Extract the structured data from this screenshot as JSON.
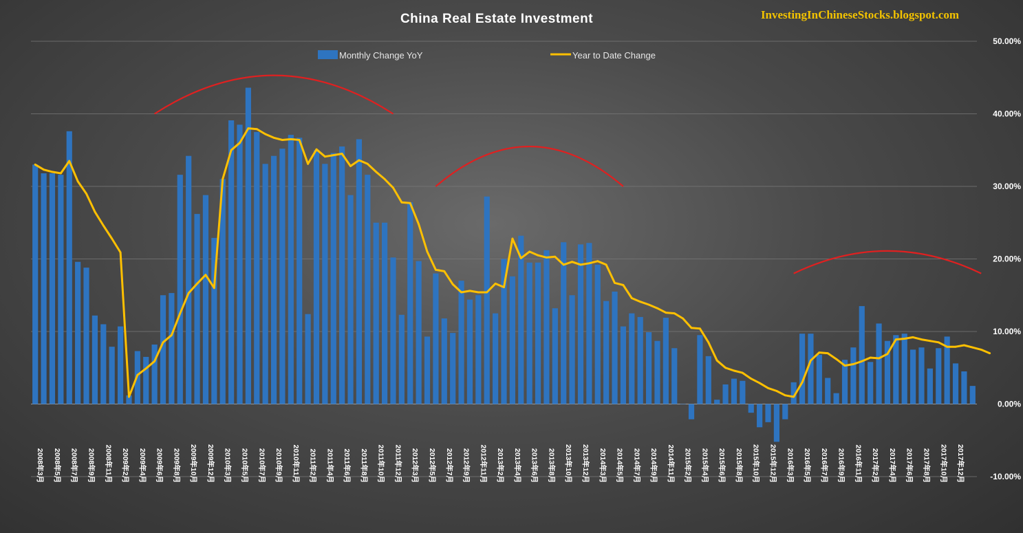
{
  "title": "China Real Estate Investment",
  "watermark": "InvestingInChineseStocks.blogspot.com",
  "colors": {
    "bar": "#2e74c0",
    "line": "#ffc000",
    "trend": "#e02020"
  },
  "chart_data": {
    "type": "bar+line",
    "title": "China Real Estate Investment",
    "xlabel": "",
    "ylabel": "",
    "ylim": [
      -0.1,
      0.5
    ],
    "yticks": [
      "50.00%",
      "40.00%",
      "30.00%",
      "20.00%",
      "10.00%",
      "0.00%",
      "-10.00%"
    ],
    "grid": true,
    "legend_position": "top-center",
    "x_tick_labels": [
      "2008年3月",
      "2008年5月",
      "2008年7月",
      "2008年9月",
      "2008年11月",
      "2009年2月",
      "2009年4月",
      "2009年6月",
      "2009年8月",
      "2009年10月",
      "2009年12月",
      "2010年3月",
      "2010年5月",
      "2010年7月",
      "2010年9月",
      "2010年11月",
      "2011年2月",
      "2011年4月",
      "2011年6月",
      "2011年8月",
      "2011年10月",
      "2011年12月",
      "2012年3月",
      "2012年5月",
      "2012年7月",
      "2012年9月",
      "2012年11月",
      "2013年2月",
      "2013年4月",
      "2013年6月",
      "2013年8月",
      "2013年10月",
      "2013年12月",
      "2014年3月",
      "2014年5月",
      "2014年7月",
      "2014年9月",
      "2014年11月",
      "2015年2月",
      "2015年4月",
      "2015年6月",
      "2015年8月",
      "2015年10月",
      "2015年12月",
      "2016年3月",
      "2016年5月",
      "2016年7月",
      "2016年9月",
      "2016年11月",
      "2017年2月",
      "2017年4月",
      "2017年6月",
      "2017年8月",
      "2017年10月",
      "2017年12月"
    ],
    "series": [
      {
        "name": "Monthly Change YoY",
        "kind": "bar",
        "values": [
          0.33,
          0.318,
          0.318,
          0.316,
          0.376,
          0.196,
          0.188,
          0.122,
          0.11,
          0.079,
          0.107,
          0.012,
          0.073,
          0.065,
          0.082,
          0.15,
          0.153,
          0.316,
          0.342,
          0.262,
          0.288,
          0.229,
          0.31,
          0.391,
          0.385,
          0.436,
          0.375,
          0.331,
          0.342,
          0.352,
          0.371,
          0.367,
          0.124,
          0.35,
          0.331,
          0.346,
          0.355,
          0.288,
          0.365,
          0.316,
          0.25,
          0.25,
          0.202,
          0.123,
          0.278,
          0.197,
          0.093,
          0.18,
          0.118,
          0.098,
          0.17,
          0.144,
          0.15,
          0.286,
          0.125,
          0.2,
          0.176,
          0.232,
          0.195,
          0.195,
          0.212,
          0.132,
          0.223,
          0.15,
          0.22,
          0.222,
          0.192,
          0.142,
          0.155,
          0.107,
          0.125,
          0.12,
          0.099,
          0.087,
          0.119,
          0.077,
          0.0,
          -0.021,
          0.095,
          0.066,
          0.006,
          0.027,
          0.035,
          0.032,
          -0.012,
          -0.032,
          -0.025,
          -0.052,
          -0.021,
          0.03,
          0.097,
          0.097,
          0.068,
          0.036,
          0.015,
          0.061,
          0.078,
          0.135,
          0.058,
          0.111,
          0.087,
          0.095,
          0.097,
          0.075,
          0.078,
          0.049,
          0.077,
          0.093,
          0.056,
          0.045,
          0.025
        ]
      },
      {
        "name": "Year to Date Change",
        "kind": "line",
        "values": [
          0.33,
          0.323,
          0.32,
          0.318,
          0.335,
          0.307,
          0.29,
          0.265,
          0.246,
          0.228,
          0.209,
          0.01,
          0.04,
          0.049,
          0.059,
          0.085,
          0.095,
          0.125,
          0.153,
          0.166,
          0.178,
          0.16,
          0.31,
          0.35,
          0.36,
          0.38,
          0.379,
          0.372,
          0.367,
          0.364,
          0.365,
          0.364,
          0.331,
          0.351,
          0.341,
          0.343,
          0.345,
          0.328,
          0.336,
          0.331,
          0.32,
          0.31,
          0.298,
          0.278,
          0.277,
          0.248,
          0.21,
          0.185,
          0.183,
          0.165,
          0.154,
          0.156,
          0.154,
          0.154,
          0.166,
          0.161,
          0.228,
          0.201,
          0.21,
          0.205,
          0.202,
          0.203,
          0.192,
          0.196,
          0.192,
          0.194,
          0.197,
          0.192,
          0.167,
          0.164,
          0.146,
          0.141,
          0.137,
          0.132,
          0.126,
          0.125,
          0.118,
          0.105,
          0.104,
          0.085,
          0.06,
          0.05,
          0.046,
          0.043,
          0.035,
          0.029,
          0.022,
          0.018,
          0.012,
          0.01,
          0.03,
          0.06,
          0.071,
          0.07,
          0.062,
          0.053,
          0.055,
          0.059,
          0.064,
          0.063,
          0.069,
          0.089,
          0.09,
          0.092,
          0.089,
          0.087,
          0.085,
          0.079,
          0.079,
          0.081,
          0.078,
          0.075,
          0.07
        ]
      }
    ],
    "trend_arcs": [
      {
        "from_index": 14,
        "peak_index": 28,
        "to_index": 42,
        "start_value": 0.4,
        "peak_value": 0.453,
        "end_value": 0.4
      },
      {
        "from_index": 47,
        "peak_index": 58,
        "to_index": 69,
        "start_value": 0.3,
        "peak_value": 0.355,
        "end_value": 0.3
      },
      {
        "from_index": 89,
        "peak_index": 100,
        "to_index": 111,
        "start_value": 0.18,
        "peak_value": 0.211,
        "end_value": 0.18
      }
    ]
  }
}
